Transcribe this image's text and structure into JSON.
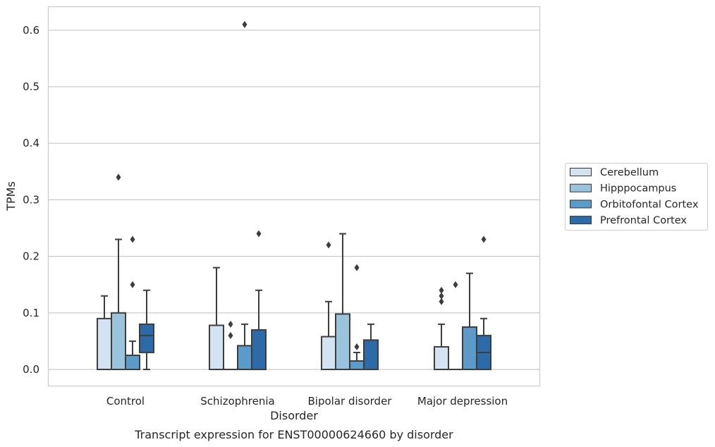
{
  "chart_data": {
    "type": "box",
    "caption": "Transcript expression for ENST00000624660 by disorder",
    "xlabel": "Disorder",
    "ylabel": "TPMs",
    "ylim": [
      -0.03,
      0.64
    ],
    "yticks": [
      0.0,
      0.1,
      0.2,
      0.3,
      0.4,
      0.5,
      0.6
    ],
    "ytick_labels": [
      "0.0",
      "0.1",
      "0.2",
      "0.3",
      "0.4",
      "0.5",
      "0.6"
    ],
    "grid": "horizontal",
    "legend_position": "right",
    "categories": [
      "Control",
      "Schizophrenia",
      "Bipolar disorder",
      "Major depression"
    ],
    "series": [
      {
        "name": "Cerebellum",
        "color": "#d4e3f1",
        "boxes": [
          {
            "whislo": 0.0,
            "q1": 0.0,
            "med": 0.0,
            "q3": 0.09,
            "whishi": 0.13,
            "fliers": []
          },
          {
            "whislo": 0.0,
            "q1": 0.0,
            "med": 0.0,
            "q3": 0.078,
            "whishi": 0.18,
            "fliers": []
          },
          {
            "whislo": 0.0,
            "q1": 0.0,
            "med": 0.0,
            "q3": 0.058,
            "whishi": 0.12,
            "fliers": [
              0.22
            ]
          },
          {
            "whislo": 0.0,
            "q1": 0.0,
            "med": 0.0,
            "q3": 0.04,
            "whishi": 0.08,
            "fliers": [
              0.12,
              0.13,
              0.14
            ]
          }
        ]
      },
      {
        "name": "Hipppocampus",
        "color": "#9ac3dd",
        "boxes": [
          {
            "whislo": 0.0,
            "q1": 0.0,
            "med": 0.0,
            "q3": 0.1,
            "whishi": 0.23,
            "fliers": [
              0.34
            ]
          },
          {
            "whislo": 0.0,
            "q1": 0.0,
            "med": 0.0,
            "q3": 0.0,
            "whishi": 0.0,
            "fliers": [
              0.06,
              0.08
            ]
          },
          {
            "whislo": 0.0,
            "q1": 0.0,
            "med": 0.0,
            "q3": 0.098,
            "whishi": 0.24,
            "fliers": []
          },
          {
            "whislo": 0.0,
            "q1": 0.0,
            "med": 0.0,
            "q3": 0.0,
            "whishi": 0.0,
            "fliers": [
              0.15
            ]
          }
        ]
      },
      {
        "name": "Orbitofontal Cortex",
        "color": "#5b9bc9",
        "boxes": [
          {
            "whislo": 0.0,
            "q1": 0.0,
            "med": 0.0,
            "q3": 0.025,
            "whishi": 0.05,
            "fliers": [
              0.15,
              0.23
            ]
          },
          {
            "whislo": 0.0,
            "q1": 0.0,
            "med": 0.0,
            "q3": 0.042,
            "whishi": 0.08,
            "fliers": [
              0.61
            ]
          },
          {
            "whislo": 0.0,
            "q1": 0.0,
            "med": 0.0,
            "q3": 0.015,
            "whishi": 0.03,
            "fliers": [
              0.04,
              0.18
            ]
          },
          {
            "whislo": 0.0,
            "q1": 0.0,
            "med": 0.0,
            "q3": 0.075,
            "whishi": 0.17,
            "fliers": []
          }
        ]
      },
      {
        "name": "Prefrontal Cortex",
        "color": "#2c6aa8",
        "boxes": [
          {
            "whislo": 0.0,
            "q1": 0.03,
            "med": 0.06,
            "q3": 0.08,
            "whishi": 0.14,
            "fliers": []
          },
          {
            "whislo": 0.0,
            "q1": 0.0,
            "med": 0.0,
            "q3": 0.07,
            "whishi": 0.14,
            "fliers": [
              0.24
            ]
          },
          {
            "whislo": 0.0,
            "q1": 0.0,
            "med": 0.0,
            "q3": 0.052,
            "whishi": 0.08,
            "fliers": []
          },
          {
            "whislo": 0.0,
            "q1": 0.0,
            "med": 0.03,
            "q3": 0.06,
            "whishi": 0.09,
            "fliers": [
              0.23
            ]
          }
        ]
      }
    ]
  }
}
